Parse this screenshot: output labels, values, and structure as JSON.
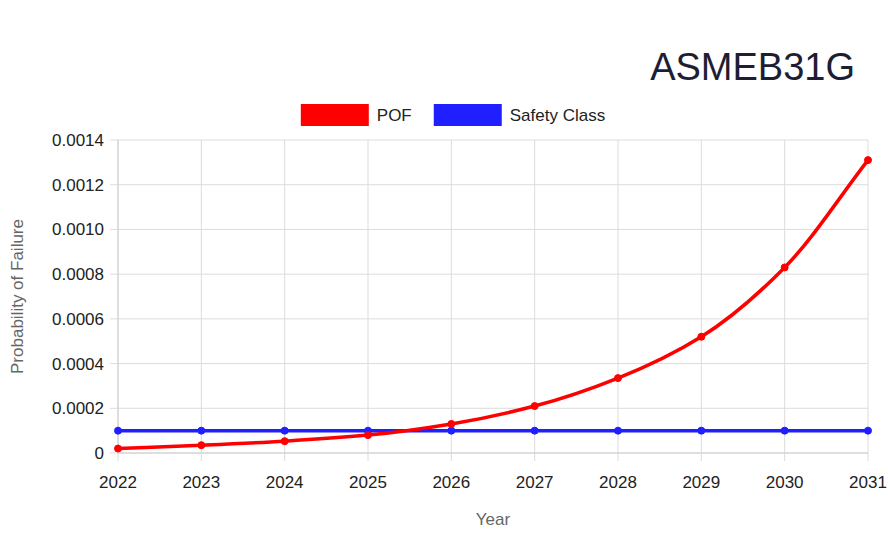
{
  "chart_data": {
    "type": "line",
    "title": "ASMEB31G",
    "x_label": "Year",
    "y_label": "Probability of Failure",
    "categories": [
      "2022",
      "2023",
      "2024",
      "2025",
      "2026",
      "2027",
      "2028",
      "2029",
      "2030",
      "2031"
    ],
    "series": [
      {
        "name": "POF",
        "color": "#ff0000",
        "marker": "circle",
        "line_style": "solid",
        "values": [
          2e-05,
          3.5e-05,
          5.3e-05,
          8e-05,
          0.00013,
          0.00021,
          0.000335,
          0.00052,
          0.00083,
          0.00131
        ]
      },
      {
        "name": "Safety Class",
        "color": "#1f1fff",
        "marker": "circle",
        "line_style": "solid",
        "values": [
          0.0001,
          0.0001,
          0.0001,
          0.0001,
          0.0001,
          0.0001,
          0.0001,
          0.0001,
          0.0001,
          0.0001
        ]
      }
    ],
    "ylim": [
      0,
      0.0014
    ],
    "yticks": [
      0,
      0.0002,
      0.0004,
      0.0006,
      0.0008,
      {
        "value": 0.001,
        "label": "0.0010"
      },
      0.0012,
      0.0014
    ],
    "grid": true,
    "legend": "top"
  }
}
